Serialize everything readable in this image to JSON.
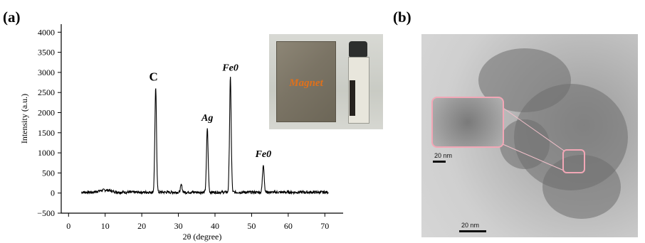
{
  "panels": {
    "a_label": "(a)",
    "b_label": "(b)"
  },
  "chart_data": {
    "type": "line",
    "title": "",
    "xlabel": "2θ (degree)",
    "ylabel": "Intensity (a.u.)",
    "xlim": [
      -2,
      75
    ],
    "ylim": [
      -500,
      4200
    ],
    "xticks": [
      0,
      10,
      20,
      30,
      40,
      50,
      60,
      70
    ],
    "yticks": [
      -500,
      0,
      500,
      1000,
      1500,
      2000,
      2500,
      3000,
      3500,
      4000
    ],
    "grid": false,
    "baseline": 20,
    "x_range": [
      3.5,
      71
    ],
    "peaks": [
      {
        "x": 23.8,
        "y": 2620,
        "label": "C"
      },
      {
        "x": 30.8,
        "y": 200,
        "label": ""
      },
      {
        "x": 37.9,
        "y": 1620,
        "label": "Ag"
      },
      {
        "x": 44.2,
        "y": 2870,
        "label": "Fe0"
      },
      {
        "x": 53.2,
        "y": 720,
        "label": "Fe0"
      }
    ],
    "annotations": [
      "C",
      "Ag",
      "Fe0",
      "Fe0"
    ]
  },
  "inset": {
    "magnet_label": "Magnet"
  },
  "tem": {
    "scale_label_inset": "20 nm",
    "scale_label_main": "20 nm"
  }
}
